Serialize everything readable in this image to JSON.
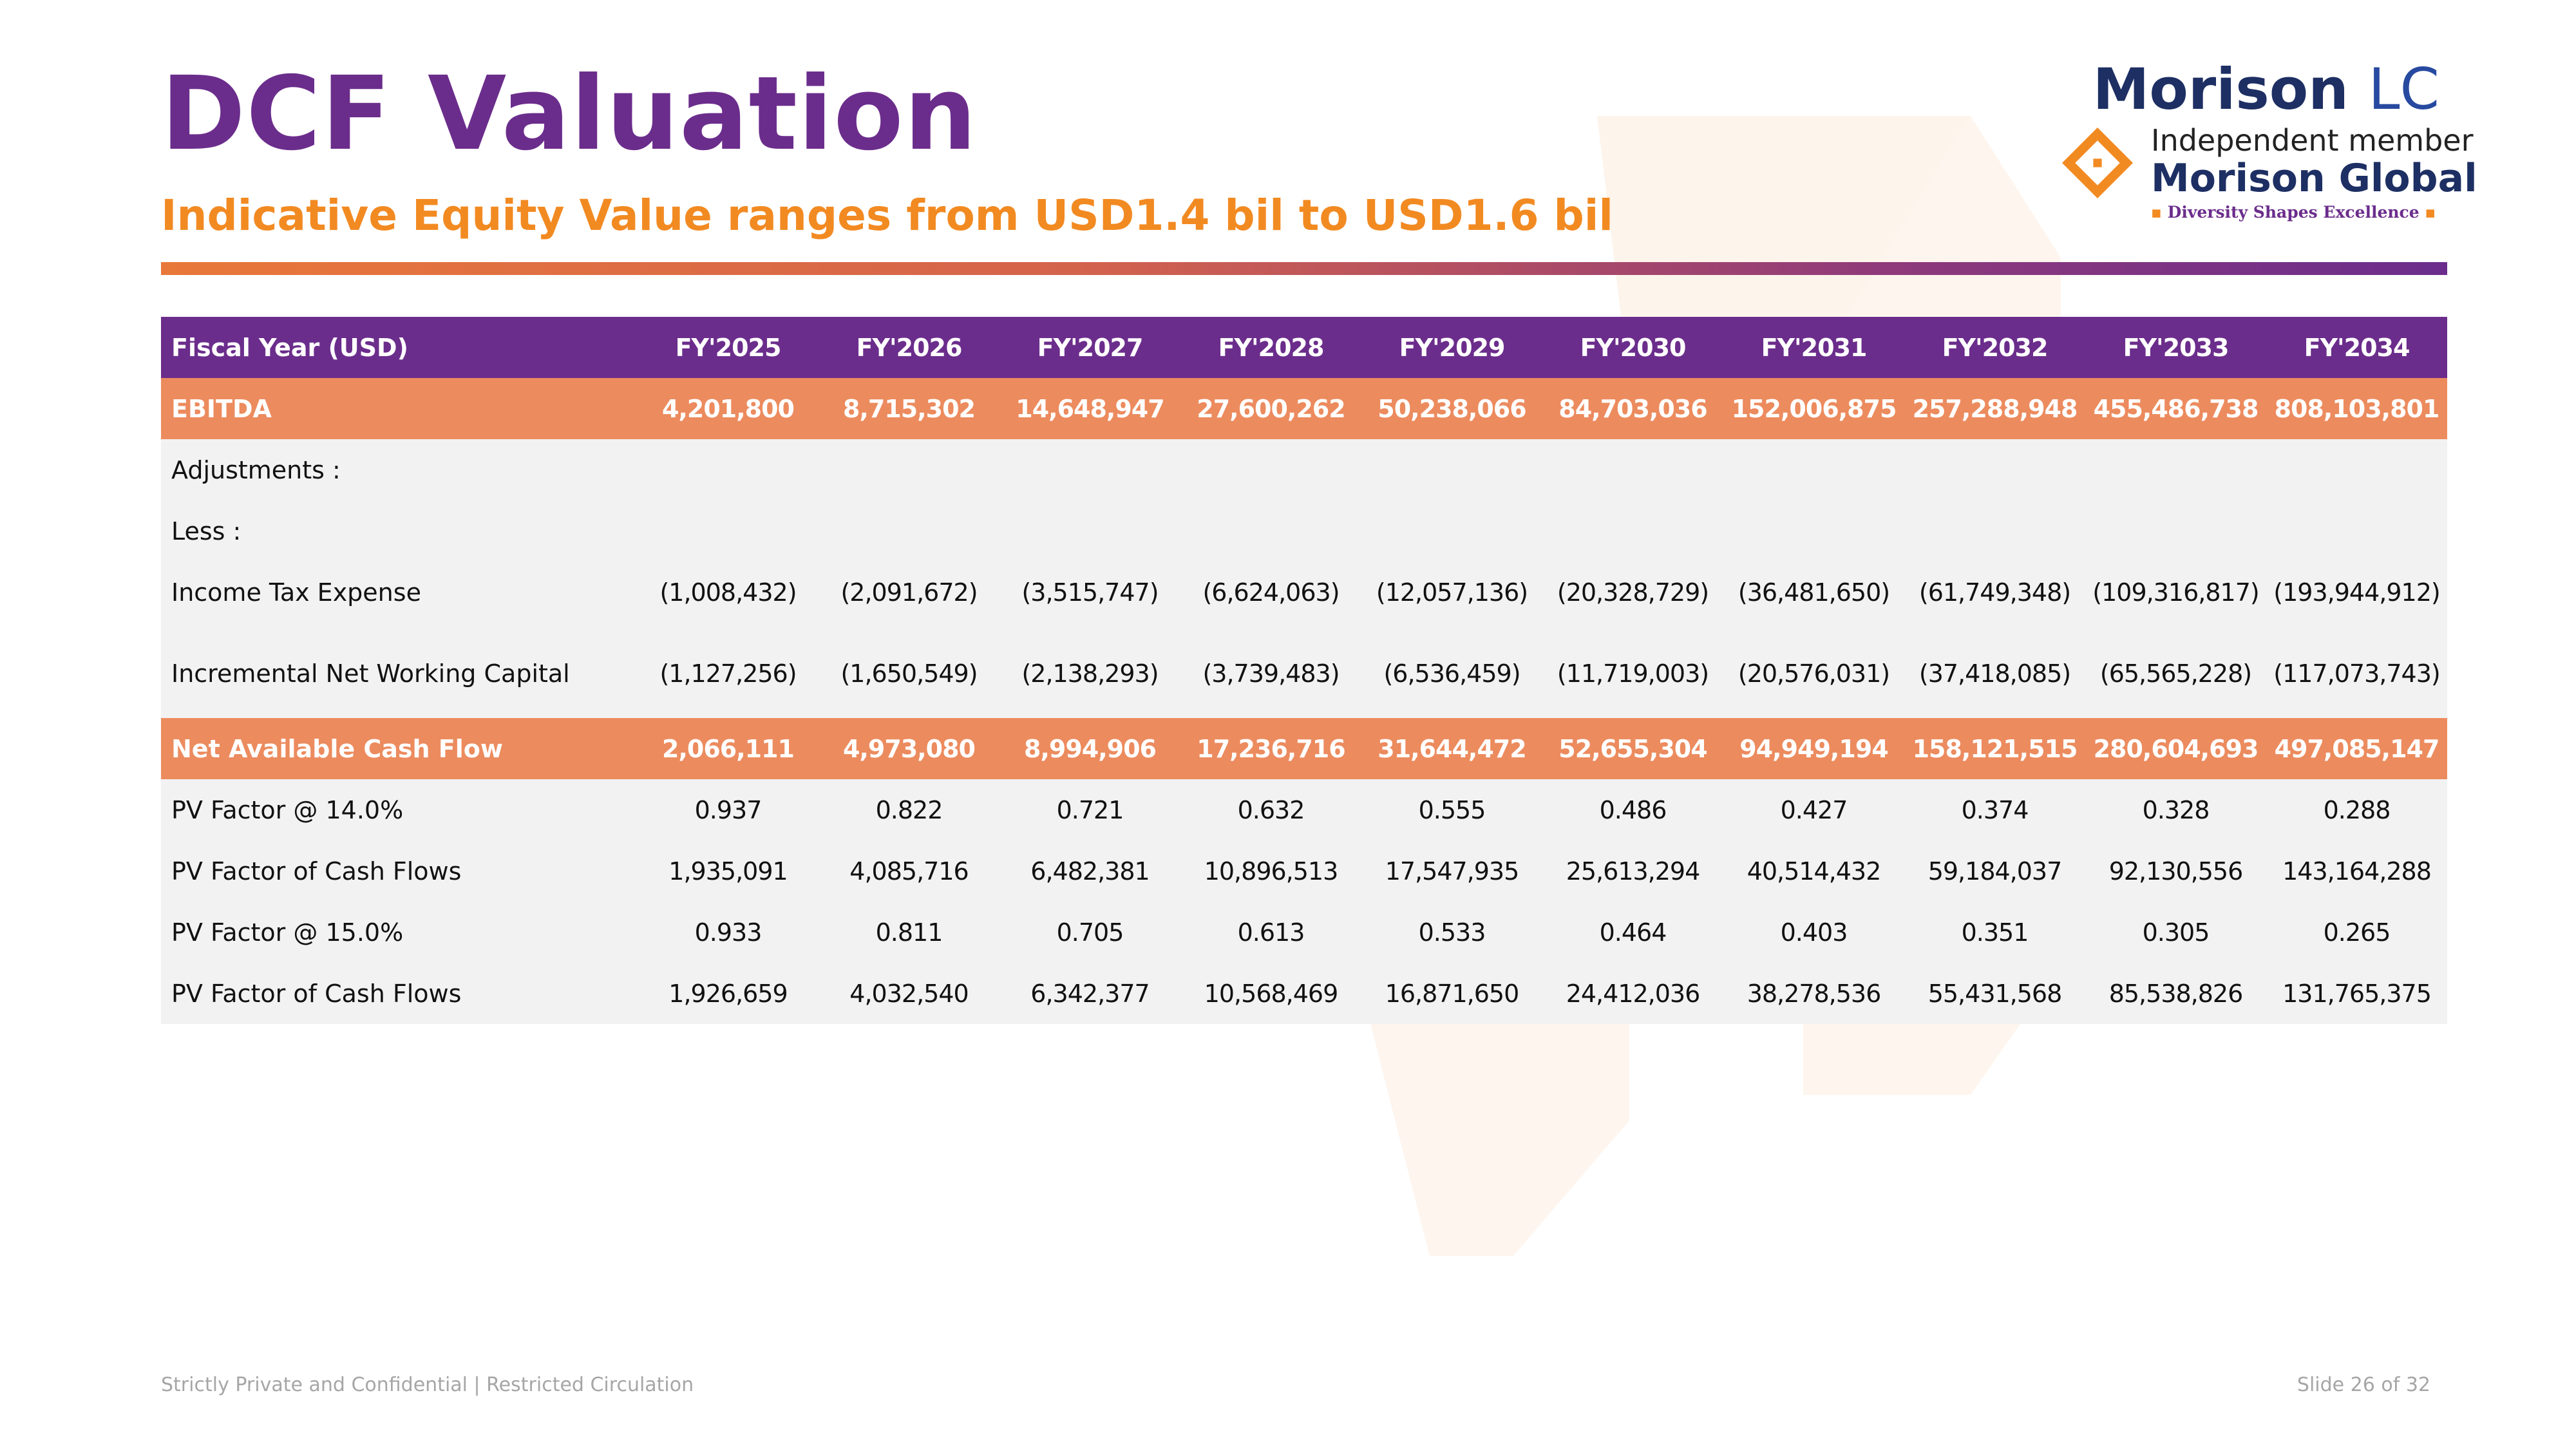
{
  "slide": {
    "title": "DCF Valuation",
    "subtitle": "Indicative Equity Value ranges from USD1.4 bil to USD1.6 bil"
  },
  "logo": {
    "brand_main": "Morison",
    "brand_suffix": "LC",
    "member_line": "Independent member",
    "network": "Morison Global",
    "tagline": "Diversity Shapes Excellence",
    "icon": "morison-global-emblem-icon"
  },
  "table": {
    "header": [
      "Fiscal Year (USD)",
      "FY'2025",
      "FY'2026",
      "FY'2027",
      "FY'2028",
      "FY'2029",
      "FY'2030",
      "FY'2031",
      "FY'2032",
      "FY'2033",
      "FY'2034"
    ],
    "ebitda": {
      "label": "EBITDA",
      "values": [
        "4,201,800",
        "8,715,302",
        "14,648,947",
        "27,600,262",
        "50,238,066",
        "84,703,036",
        "152,006,875",
        "257,288,948",
        "455,486,738",
        "808,103,801"
      ]
    },
    "adjustments_label": "Adjustments :",
    "less_label": "Less :",
    "income_tax": {
      "label": "Income Tax Expense",
      "values": [
        "(1,008,432)",
        "(2,091,672)",
        "(3,515,747)",
        "(6,624,063)",
        "(12,057,136)",
        "(20,328,729)",
        "(36,481,650)",
        "(61,749,348)",
        "(109,316,817)",
        "(193,944,912)"
      ]
    },
    "nwc": {
      "label": "Incremental Net Working Capital",
      "values": [
        "(1,127,256)",
        "(1,650,549)",
        "(2,138,293)",
        "(3,739,483)",
        "(6,536,459)",
        "(11,719,003)",
        "(20,576,031)",
        "(37,418,085)",
        "(65,565,228)",
        "(117,073,743)"
      ]
    },
    "net_cash_flow": {
      "label": "Net Available Cash Flow",
      "values": [
        "2,066,111",
        "4,973,080",
        "8,994,906",
        "17,236,716",
        "31,644,472",
        "52,655,304",
        "94,949,194",
        "158,121,515",
        "280,604,693",
        "497,085,147"
      ]
    },
    "pv_factor_14": {
      "label": "PV Factor @ 14.0%",
      "values": [
        "0.937",
        "0.822",
        "0.721",
        "0.632",
        "0.555",
        "0.486",
        "0.427",
        "0.374",
        "0.328",
        "0.288"
      ]
    },
    "pv_cash_flows_14": {
      "label": "PV Factor of Cash Flows",
      "values": [
        "1,935,091",
        "4,085,716",
        "6,482,381",
        "10,896,513",
        "17,547,935",
        "25,613,294",
        "40,514,432",
        "59,184,037",
        "92,130,556",
        "143,164,288"
      ]
    },
    "pv_factor_15": {
      "label": "PV Factor @ 15.0%",
      "values": [
        "0.933",
        "0.811",
        "0.705",
        "0.613",
        "0.533",
        "0.464",
        "0.403",
        "0.351",
        "0.305",
        "0.265"
      ]
    },
    "pv_cash_flows_15": {
      "label": "PV Factor of Cash Flows",
      "values": [
        "1,926,659",
        "4,032,540",
        "6,342,377",
        "10,568,469",
        "16,871,650",
        "24,412,036",
        "38,278,536",
        "55,431,568",
        "85,538,826",
        "131,765,375"
      ]
    }
  },
  "footer": {
    "confidentiality": "Strictly Private and Confidential | Restricted Circulation",
    "slide_number": "Slide 26 of 32"
  },
  "colors": {
    "purple": "#6b2d8c",
    "orange_text": "#f28a22",
    "highlight_row": "#ec8b5e",
    "grey_row": "#f2f2f2",
    "navy": "#1d2f63"
  }
}
